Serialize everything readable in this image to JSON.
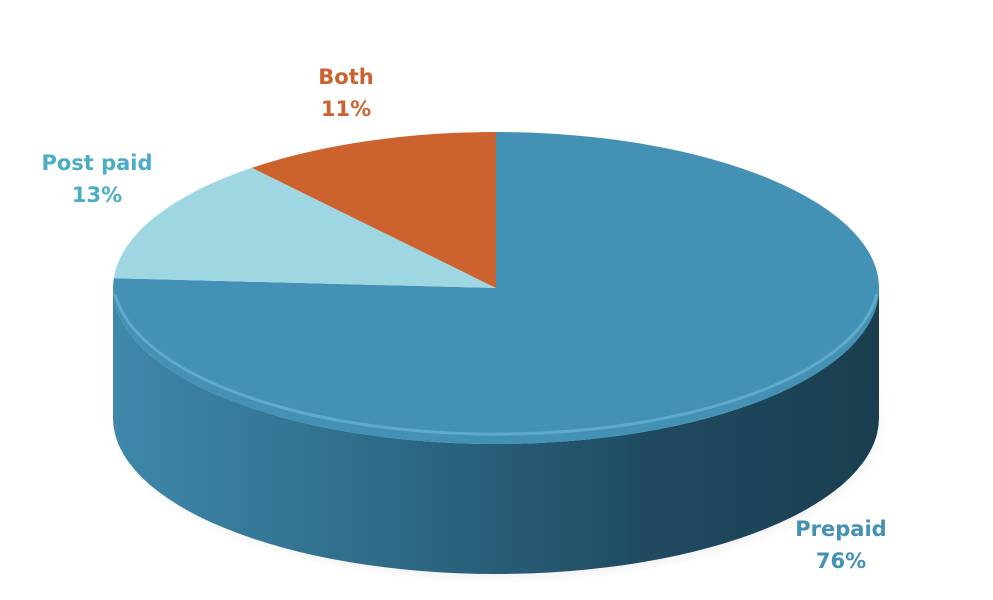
{
  "chart_data": {
    "type": "pie",
    "style": "3d",
    "start": "top, clockwise",
    "slices": [
      {
        "label": "Prepaid",
        "value": 76,
        "display": "76%",
        "color": "#4391B5",
        "label_color": "#4391B5"
      },
      {
        "label": "Post paid",
        "value": 13,
        "display": "13%",
        "color": "#9ED6E2",
        "label_color": "#4BACC6"
      },
      {
        "label": "Both",
        "value": 11,
        "display": "11%",
        "color": "#CC632E",
        "label_color": "#CC632E"
      }
    ]
  }
}
